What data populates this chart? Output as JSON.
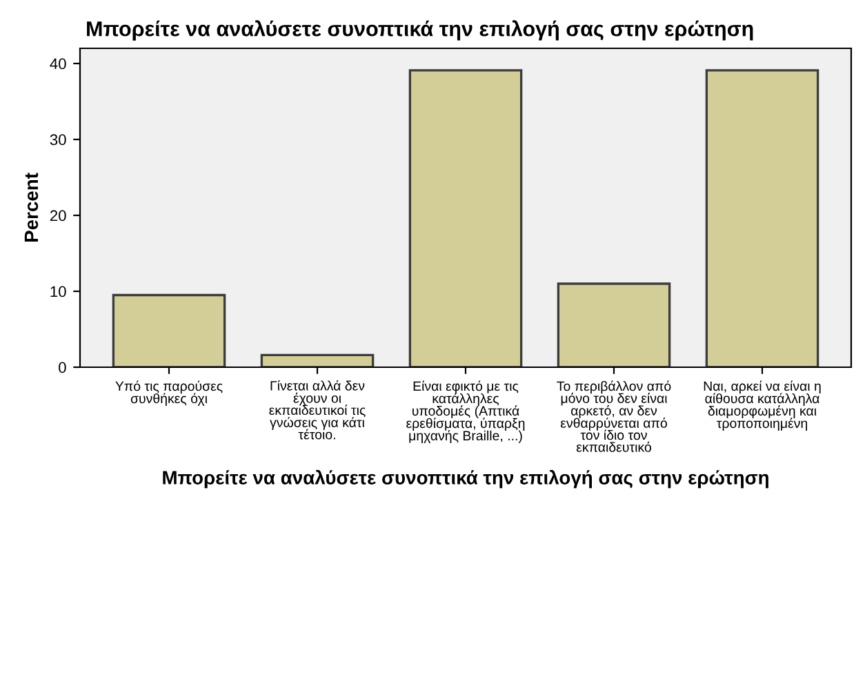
{
  "chart_data": {
    "type": "bar",
    "title": "Μπορείτε να αναλύσετε συνοπτικά την επιλογή σας στην ερώτηση",
    "xlabel": "Μπορείτε να αναλύσετε συνοπτικά την επιλογή σας στην ερώτηση",
    "ylabel": "Percent",
    "categories": [
      "Υπό τις παρούσες\nσυνθήκες όχι",
      "Γίνεται αλλά δεν\nέχουν οι\nεκπαιδευτικοί τις\nγνώσεις για κάτι\nτέτοιο.",
      "Είναι εφικτό με τις\nκατάλληλες\nυποδομές (Απτικά\nερεθίσματα, ύπαρξη\nμηχανής Braille, ...)",
      "Το περιβάλλον από\nμόνο του δεν είναι\nαρκετό, αν δεν\nενθαρρύνεται από\nτον ίδιο τον\nεκπαιδευτικό",
      "Ναι, αρκεί να είναι η\nαίθουσα κατάλληλα\nδιαμορφωμένη και\nτροποποιημένη"
    ],
    "values": [
      9.5,
      1.6,
      39.1,
      11.0,
      39.1
    ],
    "color": "#d3ce97",
    "ylim": [
      0,
      42
    ],
    "yticks": [
      0,
      10,
      20,
      30,
      40
    ],
    "grid": false
  }
}
